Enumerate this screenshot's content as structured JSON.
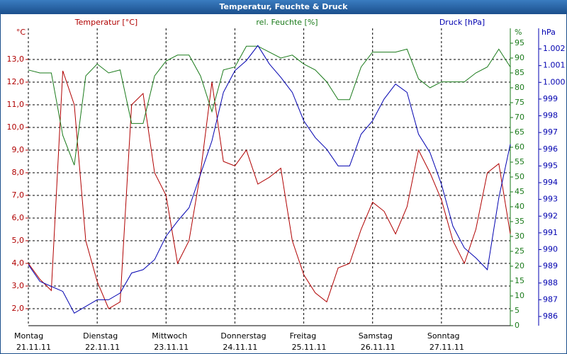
{
  "chart_data": {
    "type": "line",
    "title": "Temperatur, Feuchte & Druck",
    "ylabel": "Temperatur [°C]",
    "yunit": "°C",
    "y2label": "rel. Feuchte [%]",
    "y2unit": "%",
    "y3label": "Druck [hPa]",
    "y3unit": "hPa",
    "x": [
      0,
      4,
      8,
      12,
      16,
      20,
      24,
      28,
      32,
      36,
      40,
      44,
      48,
      52,
      56,
      60,
      64,
      68,
      72,
      76,
      80,
      84,
      88,
      92,
      96,
      100,
      104,
      108,
      112,
      116,
      120,
      124,
      128,
      132,
      136,
      140,
      144,
      148,
      152,
      156,
      160,
      164,
      168
    ],
    "xlim": [
      0,
      168
    ],
    "xticks": [
      {
        "value": 0,
        "label": "Montag",
        "date": "21.11.11"
      },
      {
        "value": 24,
        "label": "Dienstag",
        "date": "22.11.11"
      },
      {
        "value": 48,
        "label": "Mittwoch",
        "date": "23.11.11"
      },
      {
        "value": 72,
        "label": "Donnerstag",
        "date": "24.11.11"
      },
      {
        "value": 96,
        "label": "Freitag",
        "date": "25.11.11"
      },
      {
        "value": 120,
        "label": "Samstag",
        "date": "26.11.11"
      },
      {
        "value": 144,
        "label": "Sonntag",
        "date": "27.11.11"
      }
    ],
    "ylim": [
      1.25,
      14.375
    ],
    "yticks": [
      {
        "value": 2,
        "label": "2,0"
      },
      {
        "value": 3,
        "label": "3,0"
      },
      {
        "value": 4,
        "label": "4,0"
      },
      {
        "value": 5,
        "label": "5,0"
      },
      {
        "value": 6,
        "label": "6,0"
      },
      {
        "value": 7,
        "label": "7,0"
      },
      {
        "value": 8,
        "label": "8,0"
      },
      {
        "value": 9,
        "label": "9,0"
      },
      {
        "value": 10,
        "label": "10,0"
      },
      {
        "value": 11,
        "label": "11,0"
      },
      {
        "value": 12,
        "label": "12,0"
      },
      {
        "value": 13,
        "label": "13,0"
      }
    ],
    "y2lim": [
      0,
      100
    ],
    "y2ticks": [
      0,
      5,
      10,
      15,
      20,
      25,
      30,
      35,
      40,
      45,
      50,
      55,
      60,
      65,
      70,
      75,
      80,
      85,
      90,
      95
    ],
    "y3lim": [
      985.45,
      1003.23
    ],
    "y3ticks": [
      986,
      987,
      988,
      989,
      990,
      991,
      992,
      993,
      994,
      995,
      996,
      997,
      998,
      999,
      {
        "value": 1000,
        "label": "1.000"
      },
      {
        "value": 1001,
        "label": "1.001"
      },
      {
        "value": 1002,
        "label": "1.002"
      }
    ],
    "grid": true,
    "series": [
      {
        "name": "Temperatur [°C]",
        "color": "#b00000",
        "axis": "y",
        "values": [
          4.0,
          3.3,
          2.8,
          12.5,
          11.0,
          5.0,
          3.2,
          2.0,
          2.3,
          11.0,
          11.5,
          8.0,
          7.0,
          4.0,
          5.0,
          8.0,
          12.0,
          8.5,
          8.3,
          9.0,
          7.5,
          7.8,
          8.2,
          5.0,
          3.5,
          2.7,
          2.3,
          3.8,
          4.0,
          5.5,
          6.7,
          6.3,
          5.3,
          6.5,
          9.0,
          8.0,
          6.8,
          5.0,
          4.0,
          5.5,
          8.0,
          8.4,
          5.3
        ]
      },
      {
        "name": "rel. Feuchte [%]",
        "color": "#1a7a1a",
        "axis": "y2",
        "values": [
          86,
          85,
          85,
          64,
          54,
          84,
          88,
          85,
          86,
          68,
          68,
          84,
          89,
          91,
          91,
          84,
          72,
          86,
          87,
          94,
          94,
          92,
          90,
          91,
          88,
          86,
          82,
          76,
          76,
          87,
          92,
          92,
          92,
          93,
          83,
          80,
          82,
          82,
          82,
          85,
          87,
          93,
          87
        ]
      },
      {
        "name": "Druck [hPa]",
        "color": "#0000b0",
        "axis": "y3",
        "values": [
          989.1,
          988.1,
          987.8,
          987.5,
          986.2,
          986.6,
          987.0,
          987.0,
          987.4,
          988.6,
          988.8,
          989.4,
          990.8,
          991.7,
          992.5,
          994.5,
          996.5,
          999.4,
          1000.7,
          1001.3,
          1002.2,
          1001.1,
          1000.3,
          999.4,
          997.7,
          996.7,
          996.0,
          995.0,
          995.0,
          996.9,
          997.7,
          999.0,
          999.9,
          999.4,
          996.9,
          995.8,
          993.9,
          991.4,
          990.1,
          989.5,
          988.8,
          993.1,
          996.3
        ]
      }
    ]
  }
}
